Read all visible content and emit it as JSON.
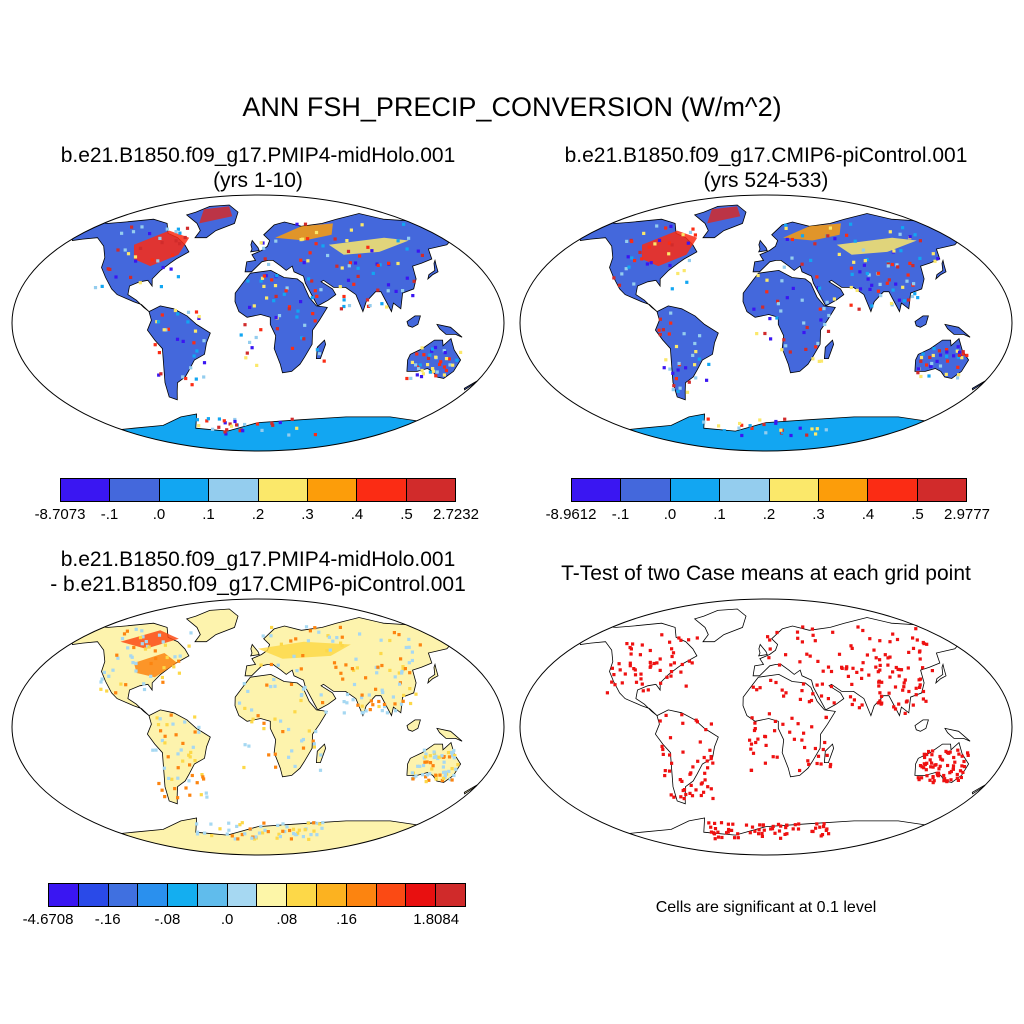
{
  "figure": {
    "title": "ANN FSH_PRECIP_CONVERSION (W/m^2)",
    "note": "Cells are significant at 0.1 level"
  },
  "panels": [
    {
      "id": "case1",
      "title_line1": "b.e21.B1850.f09_g17.PMIP4-midHolo.001",
      "title_line2": "(yrs 1-10)",
      "colorbar": {
        "colors": [
          "#3a16f2",
          "#4468dc",
          "#12a6f2",
          "#94cdee",
          "#fbe86a",
          "#fc9d0a",
          "#fb2c14",
          "#d12b2b"
        ],
        "labels": [
          "-8.7073",
          "-.1",
          ".0",
          ".1",
          ".2",
          ".3",
          ".4",
          ".5",
          "2.7232"
        ]
      }
    },
    {
      "id": "case2",
      "title_line1": "b.e21.B1850.f09_g17.CMIP6-piControl.001",
      "title_line2": "(yrs 524-533)",
      "colorbar": {
        "colors": [
          "#3a16f2",
          "#4468dc",
          "#12a6f2",
          "#94cdee",
          "#fbe86a",
          "#fc9d0a",
          "#fb2c14",
          "#d12b2b"
        ],
        "labels": [
          "-8.9612",
          "-.1",
          ".0",
          ".1",
          ".2",
          ".3",
          ".4",
          ".5",
          "2.9777"
        ]
      }
    },
    {
      "id": "diff",
      "title_line1": "b.e21.B1850.f09_g17.PMIP4-midHolo.001",
      "title_line2": "- b.e21.B1850.f09_g17.CMIP6-piControl.001",
      "colorbar": {
        "colors": [
          "#3a16f2",
          "#2a4ae8",
          "#4070e0",
          "#2a90ee",
          "#14aef0",
          "#60bcec",
          "#a6d8f2",
          "#fdf6a8",
          "#fdd848",
          "#fcb220",
          "#fc8410",
          "#fb4a14",
          "#e81010",
          "#d02a2a"
        ],
        "labels": [
          "-4.6708",
          "",
          "-.16",
          "",
          "-.08",
          "",
          ".0",
          "",
          ".08",
          "",
          ".16",
          "",
          "",
          "1.8084"
        ]
      }
    },
    {
      "id": "ttest",
      "title_line1": "T-Test of two Case means at each grid point"
    }
  ],
  "map_colors": {
    "ocean": "#ffffff",
    "land_base": "#4468dc",
    "coast": "#000000",
    "diff_base": "#fdf3ad",
    "diff_alt": "#a6d8f2",
    "sig": "#ee1111"
  }
}
